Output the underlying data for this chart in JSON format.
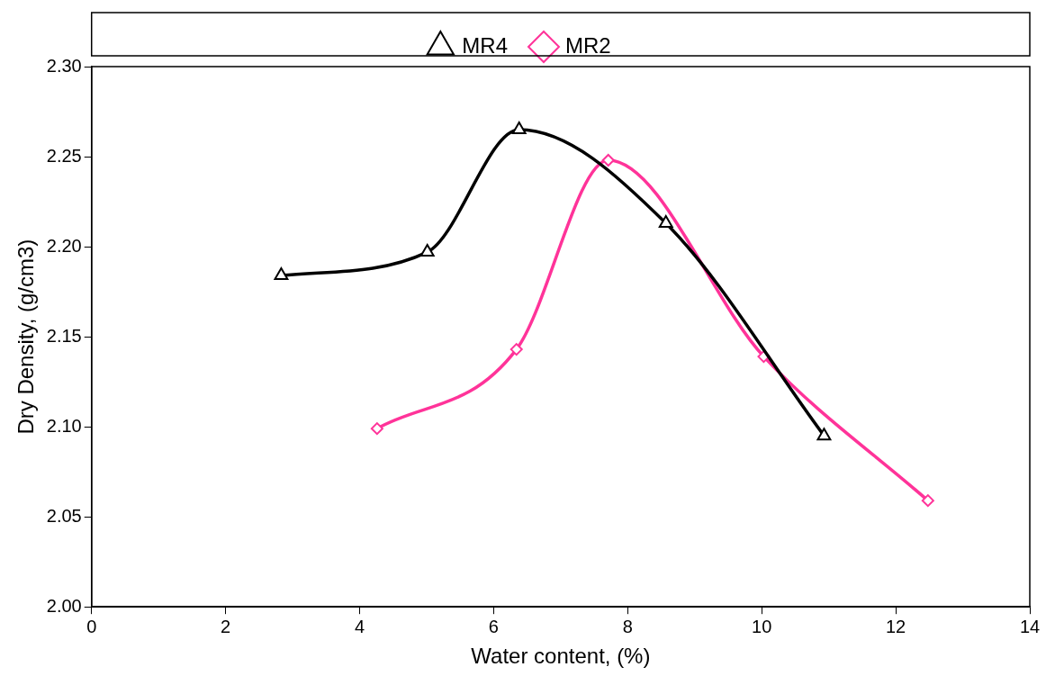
{
  "chart_data": {
    "type": "line",
    "xlabel": "Water content, (%)",
    "ylabel": "Dry Density, (g/cm3)",
    "xlim": [
      0,
      14
    ],
    "xticks": [
      0,
      2,
      4,
      6,
      8,
      10,
      12,
      14
    ],
    "ylim": [
      2.0,
      2.3
    ],
    "yticks": [
      {
        "value": 2.0,
        "label": "2.00"
      },
      {
        "value": 2.05,
        "label": "2.05"
      },
      {
        "value": 2.1,
        "label": "2.10"
      },
      {
        "value": 2.15,
        "label": "2.15"
      },
      {
        "value": 2.2,
        "label": "2.20"
      },
      {
        "value": 2.25,
        "label": "2.25"
      },
      {
        "value": 2.3,
        "label": "2.30"
      }
    ],
    "grid": false,
    "legend": "top",
    "line_style": "solid",
    "series": [
      {
        "name": "MR4",
        "color": "#000000",
        "marker": "triangle",
        "x": [
          2.83,
          5.01,
          6.38,
          8.57,
          10.93
        ],
        "values": [
          2.184,
          2.197,
          2.265,
          2.213,
          2.095
        ]
      },
      {
        "name": "MR2",
        "color": "#ff3399",
        "marker": "diamond",
        "x": [
          4.26,
          6.34,
          7.71,
          10.03,
          12.48
        ],
        "values": [
          2.099,
          2.143,
          2.248,
          2.139,
          2.059
        ]
      }
    ]
  }
}
